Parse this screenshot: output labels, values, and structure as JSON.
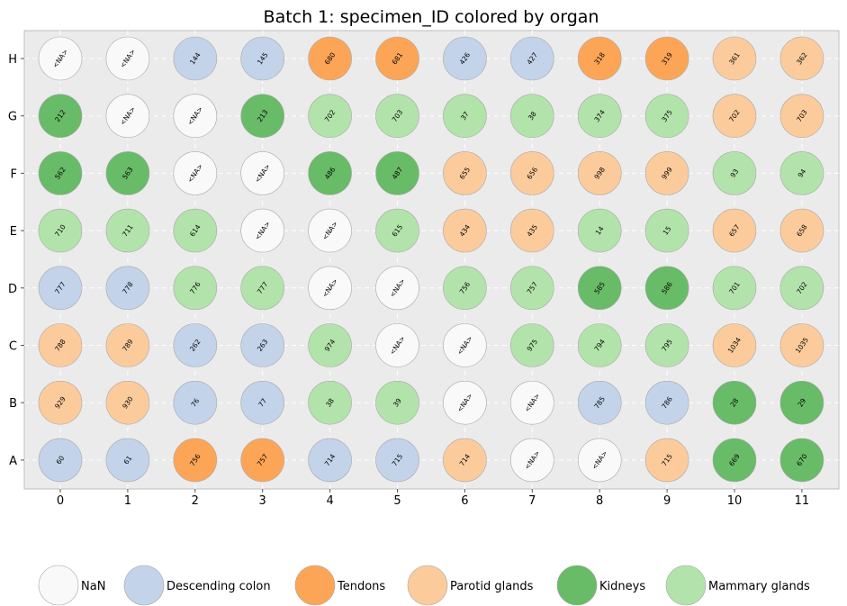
{
  "chart_data": {
    "type": "scatter",
    "title": "Batch 1: specimen_ID colored by organ",
    "xlabel": "",
    "ylabel": "",
    "x_ticks": [
      "0",
      "1",
      "2",
      "3",
      "4",
      "5",
      "6",
      "7",
      "8",
      "9",
      "10",
      "11"
    ],
    "y_ticks": [
      "A",
      "B",
      "C",
      "D",
      "E",
      "F",
      "G",
      "H"
    ],
    "grid": true,
    "legend_placement": "bottom",
    "categories": [
      {
        "name": "NaN",
        "color": "#f9f9f9"
      },
      {
        "name": "Descending colon",
        "color": "#c2d3ea"
      },
      {
        "name": "Tendons",
        "color": "#fda556"
      },
      {
        "name": "Parotid glands",
        "color": "#fccb9c"
      },
      {
        "name": "Kidneys",
        "color": "#68bb67"
      },
      {
        "name": "Mammary glands",
        "color": "#b2e3aa"
      }
    ],
    "rows": [
      {
        "row": "H",
        "wells": [
          {
            "label": "<NA>",
            "cat": 0
          },
          {
            "label": "<NA>",
            "cat": 0
          },
          {
            "label": "144",
            "cat": 1
          },
          {
            "label": "145",
            "cat": 1
          },
          {
            "label": "680",
            "cat": 2
          },
          {
            "label": "681",
            "cat": 2
          },
          {
            "label": "426",
            "cat": 1
          },
          {
            "label": "427",
            "cat": 1
          },
          {
            "label": "318",
            "cat": 2
          },
          {
            "label": "319",
            "cat": 2
          },
          {
            "label": "361",
            "cat": 3
          },
          {
            "label": "362",
            "cat": 3
          }
        ]
      },
      {
        "row": "G",
        "wells": [
          {
            "label": "212",
            "cat": 4
          },
          {
            "label": "<NA>",
            "cat": 0
          },
          {
            "label": "<NA>",
            "cat": 0
          },
          {
            "label": "213",
            "cat": 4
          },
          {
            "label": "702",
            "cat": 5
          },
          {
            "label": "703",
            "cat": 5
          },
          {
            "label": "37",
            "cat": 5
          },
          {
            "label": "38",
            "cat": 5
          },
          {
            "label": "374",
            "cat": 5
          },
          {
            "label": "375",
            "cat": 5
          },
          {
            "label": "702",
            "cat": 3
          },
          {
            "label": "703",
            "cat": 3
          }
        ]
      },
      {
        "row": "F",
        "wells": [
          {
            "label": "562",
            "cat": 4
          },
          {
            "label": "563",
            "cat": 4
          },
          {
            "label": "<NA>",
            "cat": 0
          },
          {
            "label": "<NA>",
            "cat": 0
          },
          {
            "label": "486",
            "cat": 4
          },
          {
            "label": "487",
            "cat": 4
          },
          {
            "label": "655",
            "cat": 3
          },
          {
            "label": "656",
            "cat": 3
          },
          {
            "label": "998",
            "cat": 3
          },
          {
            "label": "999",
            "cat": 3
          },
          {
            "label": "93",
            "cat": 5
          },
          {
            "label": "94",
            "cat": 5
          }
        ]
      },
      {
        "row": "E",
        "wells": [
          {
            "label": "710",
            "cat": 5
          },
          {
            "label": "711",
            "cat": 5
          },
          {
            "label": "614",
            "cat": 5
          },
          {
            "label": "<NA>",
            "cat": 0
          },
          {
            "label": "<NA>",
            "cat": 0
          },
          {
            "label": "615",
            "cat": 5
          },
          {
            "label": "434",
            "cat": 3
          },
          {
            "label": "435",
            "cat": 3
          },
          {
            "label": "14",
            "cat": 5
          },
          {
            "label": "15",
            "cat": 5
          },
          {
            "label": "657",
            "cat": 3
          },
          {
            "label": "658",
            "cat": 3
          }
        ]
      },
      {
        "row": "D",
        "wells": [
          {
            "label": "777",
            "cat": 1
          },
          {
            "label": "778",
            "cat": 1
          },
          {
            "label": "776",
            "cat": 5
          },
          {
            "label": "777",
            "cat": 5
          },
          {
            "label": "<NA>",
            "cat": 0
          },
          {
            "label": "<NA>",
            "cat": 0
          },
          {
            "label": "756",
            "cat": 5
          },
          {
            "label": "757",
            "cat": 5
          },
          {
            "label": "585",
            "cat": 4
          },
          {
            "label": "586",
            "cat": 4
          },
          {
            "label": "701",
            "cat": 5
          },
          {
            "label": "702",
            "cat": 5
          }
        ]
      },
      {
        "row": "C",
        "wells": [
          {
            "label": "788",
            "cat": 3
          },
          {
            "label": "789",
            "cat": 3
          },
          {
            "label": "262",
            "cat": 1
          },
          {
            "label": "263",
            "cat": 1
          },
          {
            "label": "974",
            "cat": 5
          },
          {
            "label": "<NA>",
            "cat": 0
          },
          {
            "label": "<NA>",
            "cat": 0
          },
          {
            "label": "975",
            "cat": 5
          },
          {
            "label": "794",
            "cat": 5
          },
          {
            "label": "795",
            "cat": 5
          },
          {
            "label": "1034",
            "cat": 3
          },
          {
            "label": "1035",
            "cat": 3
          }
        ]
      },
      {
        "row": "B",
        "wells": [
          {
            "label": "929",
            "cat": 3
          },
          {
            "label": "930",
            "cat": 3
          },
          {
            "label": "76",
            "cat": 1
          },
          {
            "label": "77",
            "cat": 1
          },
          {
            "label": "38",
            "cat": 5
          },
          {
            "label": "39",
            "cat": 5
          },
          {
            "label": "<NA>",
            "cat": 0
          },
          {
            "label": "<NA>",
            "cat": 0
          },
          {
            "label": "785",
            "cat": 1
          },
          {
            "label": "786",
            "cat": 1
          },
          {
            "label": "28",
            "cat": 4
          },
          {
            "label": "29",
            "cat": 4
          }
        ]
      },
      {
        "row": "A",
        "wells": [
          {
            "label": "60",
            "cat": 1
          },
          {
            "label": "61",
            "cat": 1
          },
          {
            "label": "756",
            "cat": 2
          },
          {
            "label": "757",
            "cat": 2
          },
          {
            "label": "714",
            "cat": 1
          },
          {
            "label": "715",
            "cat": 1
          },
          {
            "label": "714",
            "cat": 3
          },
          {
            "label": "<NA>",
            "cat": 0
          },
          {
            "label": "<NA>",
            "cat": 0
          },
          {
            "label": "715",
            "cat": 3
          },
          {
            "label": "669",
            "cat": 4
          },
          {
            "label": "670",
            "cat": 4
          }
        ]
      }
    ]
  }
}
